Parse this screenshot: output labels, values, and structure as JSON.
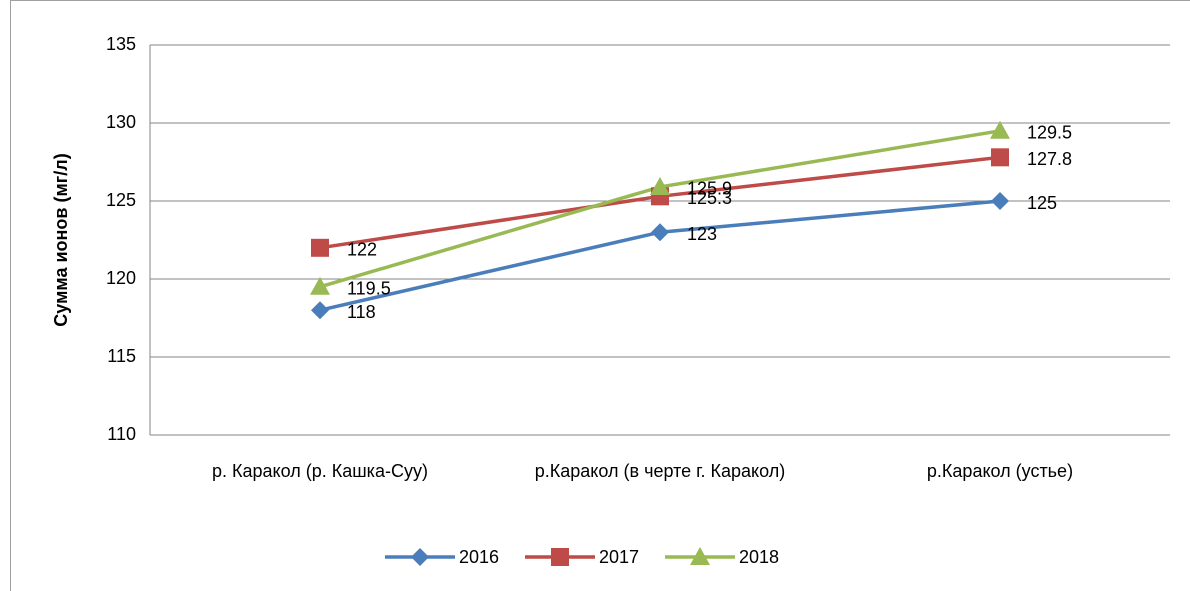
{
  "chart_data": {
    "type": "line",
    "y_label": "Сумма ионов (мг/л)",
    "categories": [
      "р. Каракол (р. Кашка-Суу)",
      "р.Каракол (в черте г. Каракол)",
      "р.Каракол (устье)"
    ],
    "series": [
      {
        "name": "2016",
        "color": "#4a7ebb",
        "marker": "diamond",
        "values": [
          118,
          123,
          125
        ]
      },
      {
        "name": "2017",
        "color": "#be4b48",
        "marker": "square",
        "values": [
          122,
          125.3,
          127.8
        ]
      },
      {
        "name": "2018",
        "color": "#98b954",
        "marker": "triangle",
        "values": [
          119.5,
          125.9,
          129.5
        ]
      }
    ],
    "ylim": [
      110,
      135
    ],
    "yticks": [
      110,
      115,
      120,
      125,
      130,
      135
    ],
    "grid": true,
    "legend": "bottom"
  }
}
